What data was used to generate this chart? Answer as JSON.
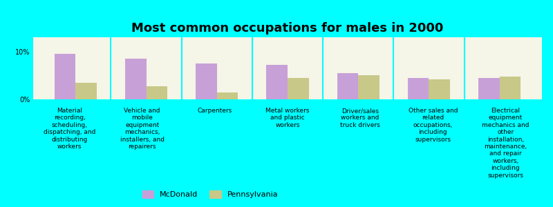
{
  "title": "Most common occupations for males in 2000",
  "background_color": "#00FFFF",
  "plot_background_color": "#F5F5E8",
  "categories": [
    "Material\nrecording,\nscheduling,\ndispatching, and\ndistributing\nworkers",
    "Vehicle and\nmobile\nequipment\nmechanics,\ninstallers, and\nrepairers",
    "Carpenters",
    "Metal workers\nand plastic\nworkers",
    "Driver/sales\nworkers and\ntruck drivers",
    "Other sales and\nrelated\noccupations,\nincluding\nsupervisors",
    "Electrical\nequipment\nmechanics and\nother\ninstallation,\nmaintenance,\nand repair\nworkers,\nincluding\nsupervisors"
  ],
  "series": [
    {
      "name": "McDonald",
      "color": "#C8A0D8",
      "values": [
        9.5,
        8.5,
        7.5,
        7.2,
        5.5,
        4.5,
        4.5
      ]
    },
    {
      "name": "Pennsylvania",
      "color": "#C8C888",
      "values": [
        3.5,
        2.8,
        1.5,
        4.5,
        5.0,
        4.2,
        4.8
      ]
    }
  ],
  "ylim": [
    0,
    13
  ],
  "yticks": [
    0,
    10
  ],
  "ytick_labels": [
    "0%",
    "10%"
  ],
  "bar_width": 0.3,
  "title_fontsize": 13,
  "tick_fontsize": 7,
  "legend_fontsize": 8,
  "label_fontsize": 6.5
}
